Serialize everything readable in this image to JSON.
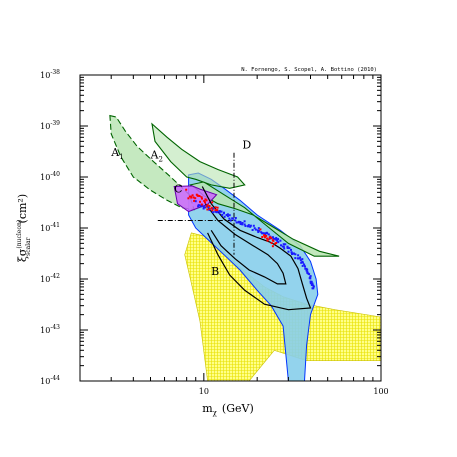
{
  "chart_data": {
    "type": "area",
    "title": "",
    "credit": "N. Fornengo, S. Scopel, A. Bottino (2010)",
    "xlabel": {
      "base": "m",
      "sub": "χ",
      "unit": "(GeV)"
    },
    "ylabel": {
      "base": "ξσ",
      "sup": "(nucleon)",
      "sub": "scalar",
      "unit": "(cm²)"
    },
    "xscale": "log",
    "yscale": "log",
    "xlim": [
      2,
      100
    ],
    "ylim": [
      1e-44,
      1e-38
    ],
    "x_ticks": [
      {
        "value": 10,
        "label": "10"
      },
      {
        "value": 100,
        "label": "100"
      }
    ],
    "y_ticks": [
      {
        "value": 1e-38,
        "label": "10",
        "exp": "-38"
      },
      {
        "value": 1e-39,
        "label": "10",
        "exp": "-39"
      },
      {
        "value": 1e-40,
        "label": "10",
        "exp": "-40"
      },
      {
        "value": 1e-41,
        "label": "10",
        "exp": "-41"
      },
      {
        "value": 1e-42,
        "label": "10",
        "exp": "-42"
      },
      {
        "value": 1e-43,
        "label": "10",
        "exp": "-43"
      },
      {
        "value": 1e-44,
        "label": "10",
        "exp": "-44"
      }
    ],
    "grid": false,
    "legend": "none",
    "annotations": [
      {
        "text": "A",
        "sub": "1",
        "x": 3.0,
        "y": 2.6e-40
      },
      {
        "text": "A",
        "sub": "2",
        "x": 5.0,
        "y": 2.3e-40
      },
      {
        "text": "C",
        "x": 6.8,
        "y": 5e-41
      },
      {
        "text": "D",
        "x": 16.5,
        "y": 3.6e-40
      },
      {
        "text": "B",
        "x": 11.0,
        "y": 1.2e-42
      }
    ],
    "colors": {
      "yellow_fill": "#ffff88",
      "yellow_hatch": "#e8e000",
      "blue_fill": "#87ceeb",
      "blue_edge": "#0033ff",
      "green_fill": "#b7e4b0",
      "green_edge": "#006400",
      "purple_fill": "#cc66ff",
      "purple_edge": "#6600aa",
      "red_points": "#ff0000",
      "blue_points": "#1a1aff"
    },
    "regions": [
      {
        "name": "B",
        "kind": "yellow-hatched",
        "color": "#ffff88",
        "points": [
          [
            7.8,
            3e-42
          ],
          [
            8.5,
            8e-42
          ],
          [
            10,
            7e-42
          ],
          [
            12,
            4.5e-42
          ],
          [
            14,
            2.6e-42
          ],
          [
            17,
            1.4e-42
          ],
          [
            22,
            7e-43
          ],
          [
            28,
            4.5e-43
          ],
          [
            38,
            3.2e-43
          ],
          [
            55,
            2.5e-43
          ],
          [
            100,
            1.8e-43
          ],
          [
            100,
            2.5e-44
          ],
          [
            38,
            2.5e-44
          ],
          [
            25,
            4e-44
          ],
          [
            18,
            1e-44
          ],
          [
            10.5,
            1e-44
          ],
          [
            9.5,
            1.5e-43
          ],
          [
            8.6,
            7e-43
          ]
        ]
      },
      {
        "name": "blue",
        "kind": "blue-filled",
        "color": "#87ceeb",
        "points": [
          [
            8.2,
            1.1e-40
          ],
          [
            9.3,
            1.2e-40
          ],
          [
            11,
            9e-41
          ],
          [
            13,
            6e-41
          ],
          [
            16,
            3.5e-41
          ],
          [
            20,
            1.8e-41
          ],
          [
            27,
            9e-42
          ],
          [
            35,
            4.5e-42
          ],
          [
            40,
            2.2e-42
          ],
          [
            43,
            1e-42
          ],
          [
            44,
            5e-43
          ],
          [
            40,
            2e-43
          ],
          [
            38,
            5e-44
          ],
          [
            37,
            1e-44
          ],
          [
            30,
            1e-44
          ],
          [
            28,
            1.2e-43
          ],
          [
            24,
            3e-43
          ],
          [
            20,
            6e-43
          ],
          [
            16,
            1.5e-42
          ],
          [
            13,
            3e-42
          ],
          [
            10.5,
            6e-42
          ],
          [
            9,
            1e-41
          ],
          [
            8.2,
            1.8e-41
          ]
        ]
      },
      {
        "name": "green-band",
        "kind": "green-filled",
        "color": "#b7e4b0",
        "points": [
          [
            8.4,
            7e-41
          ],
          [
            10,
            8e-41
          ],
          [
            13,
            4.5e-41
          ],
          [
            17,
            2.5e-41
          ],
          [
            22,
            1.2e-41
          ],
          [
            30,
            5e-42
          ],
          [
            42,
            2.8e-42
          ],
          [
            58,
            2.8e-42
          ],
          [
            45,
            3.5e-42
          ],
          [
            32,
            6e-42
          ],
          [
            24,
            1.1e-41
          ],
          [
            19,
            1.8e-41
          ],
          [
            15,
            2.4e-41
          ],
          [
            12,
            3e-41
          ],
          [
            10,
            4.3e-41
          ],
          [
            9,
            6e-41
          ]
        ]
      },
      {
        "name": "A1",
        "kind": "green-dashed",
        "color": "#b7e4b0",
        "points": [
          [
            2.95,
            1.6e-39
          ],
          [
            3.2,
            1.5e-39
          ],
          [
            3.6,
            8e-40
          ],
          [
            4.2,
            4e-40
          ],
          [
            5.2,
            2e-40
          ],
          [
            6.5,
            1e-40
          ],
          [
            8.3,
            4.5e-41
          ],
          [
            8.8,
            2.3e-41
          ],
          [
            7.5,
            2.5e-41
          ],
          [
            6.2,
            3.5e-41
          ],
          [
            5,
            5.5e-41
          ],
          [
            4,
            1e-40
          ],
          [
            3.4,
            2.5e-40
          ],
          [
            3,
            7e-40
          ]
        ]
      },
      {
        "name": "A2",
        "kind": "green-solid",
        "color": "#b7e4b0",
        "points": [
          [
            5.1,
            1.1e-39
          ],
          [
            6.2,
            6e-40
          ],
          [
            7.5,
            3.5e-40
          ],
          [
            9.5,
            2e-40
          ],
          [
            12,
            1.4e-40
          ],
          [
            15.5,
            1e-40
          ],
          [
            17,
            7e-41
          ],
          [
            14,
            6e-41
          ],
          [
            11,
            7e-41
          ],
          [
            9,
            9e-41
          ],
          [
            8,
            1e-40
          ],
          [
            6.5,
            2e-40
          ],
          [
            5.3,
            5e-40
          ]
        ]
      },
      {
        "name": "C",
        "kind": "purple",
        "color": "#cc66ff",
        "points": [
          [
            6.8,
            6.5e-41
          ],
          [
            8.6,
            6.7e-41
          ],
          [
            9.5,
            5.8e-41
          ],
          [
            11.8,
            4.5e-41
          ],
          [
            10.5,
            2.9e-41
          ],
          [
            8.2,
            2.1e-41
          ],
          [
            7.1,
            3e-41
          ]
        ]
      }
    ],
    "point_clouds": [
      {
        "name": "red",
        "color": "#ff0000",
        "band": [
          [
            8,
            4.6e-41
          ],
          [
            9,
            3.8e-41
          ],
          [
            10.5,
            2.8e-41
          ],
          [
            12,
            2.2e-41
          ]
        ],
        "cluster": [
          [
            21,
            8e-42
          ],
          [
            23,
            6e-42
          ],
          [
            25,
            4.5e-42
          ]
        ]
      },
      {
        "name": "blue",
        "color": "#1a1aff",
        "band": [
          [
            9,
            3e-41
          ],
          [
            12,
            2e-41
          ],
          [
            16,
            1.3e-41
          ],
          [
            20,
            9e-42
          ],
          [
            25,
            6e-42
          ],
          [
            30,
            3.8e-42
          ],
          [
            35,
            2.3e-42
          ],
          [
            38,
            1.4e-42
          ],
          [
            40,
            9e-43
          ],
          [
            41,
            6.5e-43
          ]
        ]
      }
    ],
    "lines": [
      {
        "name": "D-vertical",
        "style": "dash-dot",
        "points": [
          [
            14.8,
            3e-40
          ],
          [
            14.8,
            3e-42
          ]
        ]
      },
      {
        "name": "D-horizontal",
        "style": "dash-dot",
        "points": [
          [
            5.5,
            1.4e-41
          ],
          [
            14.8,
            1.4e-41
          ]
        ]
      },
      {
        "name": "contour-outer",
        "style": "solid",
        "points": [
          [
            9.8,
            6.5e-41
          ],
          [
            11,
            3e-41
          ],
          [
            13,
            1.5e-41
          ],
          [
            16,
            9e-42
          ],
          [
            20,
            6.5e-42
          ],
          [
            24,
            5.2e-42
          ],
          [
            27,
            4e-42
          ],
          [
            31,
            2.8e-42
          ],
          [
            34,
            1.6e-42
          ],
          [
            36,
            8e-43
          ],
          [
            38,
            4.2e-43
          ],
          [
            40,
            2.7e-43
          ],
          [
            30,
            2.5e-43
          ],
          [
            22,
            3.2e-43
          ],
          [
            17,
            6e-43
          ],
          [
            14,
            1.2e-42
          ],
          [
            12,
            3e-42
          ],
          [
            10.5,
            8e-42
          ]
        ]
      },
      {
        "name": "contour-inner",
        "style": "solid",
        "points": [
          [
            10.2,
            3e-41
          ],
          [
            12,
            1.4e-41
          ],
          [
            15,
            7.5e-42
          ],
          [
            19,
            4.5e-42
          ],
          [
            23,
            3e-42
          ],
          [
            26,
            2e-42
          ],
          [
            28,
            1.3e-42
          ],
          [
            29,
            8e-43
          ],
          [
            26,
            8e-43
          ],
          [
            22,
            1.1e-42
          ],
          [
            18,
            1.5e-42
          ],
          [
            15,
            2.5e-42
          ],
          [
            12.5,
            4.5e-42
          ],
          [
            11,
            9e-42
          ]
        ]
      }
    ]
  }
}
